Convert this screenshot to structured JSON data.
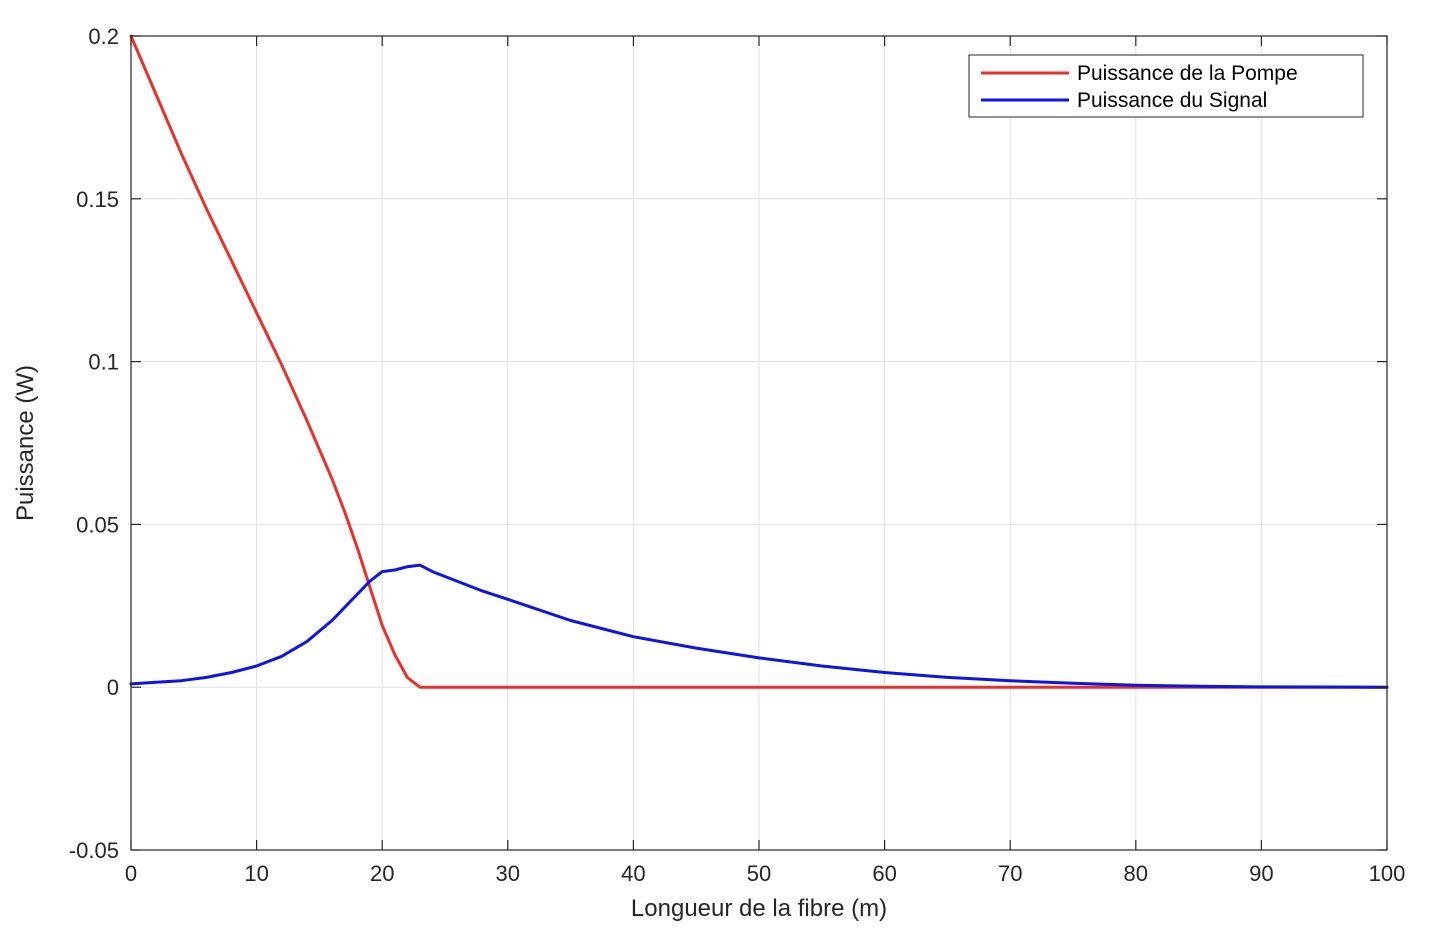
{
  "chart_data": {
    "type": "line",
    "title": "",
    "xlabel": "Longueur de la fibre (m)",
    "ylabel": "Puissance (W)",
    "xlim": [
      0,
      100
    ],
    "ylim": [
      -0.05,
      0.2
    ],
    "xticks": [
      0,
      10,
      20,
      30,
      40,
      50,
      60,
      70,
      80,
      90,
      100
    ],
    "xtick_labels": [
      "0",
      "10",
      "20",
      "30",
      "40",
      "50",
      "60",
      "70",
      "80",
      "90",
      "100"
    ],
    "yticks": [
      -0.05,
      0,
      0.05,
      0.1,
      0.15,
      0.2
    ],
    "ytick_labels": [
      "-0.05",
      "0",
      "0.05",
      "0.1",
      "0.15",
      "0.2"
    ],
    "grid": true,
    "legend_position": "top-right",
    "series": [
      {
        "name": "Puissance de la Pompe",
        "color": "#e8312a",
        "x": [
          0,
          2,
          4,
          6,
          8,
          10,
          12,
          14,
          16,
          17,
          18,
          19,
          20,
          21,
          22,
          23,
          24,
          30,
          40,
          50,
          60,
          70,
          80,
          90,
          100
        ],
        "y": [
          0.2,
          0.182,
          0.164,
          0.147,
          0.131,
          0.115,
          0.099,
          0.082,
          0.064,
          0.054,
          0.043,
          0.031,
          0.019,
          0.01,
          0.003,
          0.0,
          0.0,
          0.0,
          0.0,
          0.0,
          0.0,
          0.0,
          0.0,
          0.0,
          0.0
        ]
      },
      {
        "name": "Puissance du Signal",
        "color": "#0c14e6",
        "x": [
          0,
          2,
          4,
          6,
          8,
          10,
          12,
          14,
          16,
          18,
          19,
          20,
          21,
          22,
          23,
          24,
          26,
          28,
          30,
          35,
          40,
          45,
          50,
          55,
          60,
          65,
          70,
          75,
          80,
          85,
          90,
          95,
          100
        ],
        "y": [
          0.001,
          0.0015,
          0.002,
          0.003,
          0.0045,
          0.0065,
          0.0095,
          0.014,
          0.0205,
          0.0285,
          0.0325,
          0.0355,
          0.036,
          0.037,
          0.0375,
          0.0355,
          0.0325,
          0.0295,
          0.027,
          0.0205,
          0.0155,
          0.012,
          0.009,
          0.0065,
          0.0045,
          0.003,
          0.002,
          0.0012,
          0.0006,
          0.0003,
          0.0001,
          5e-05,
          0.0
        ]
      }
    ]
  }
}
